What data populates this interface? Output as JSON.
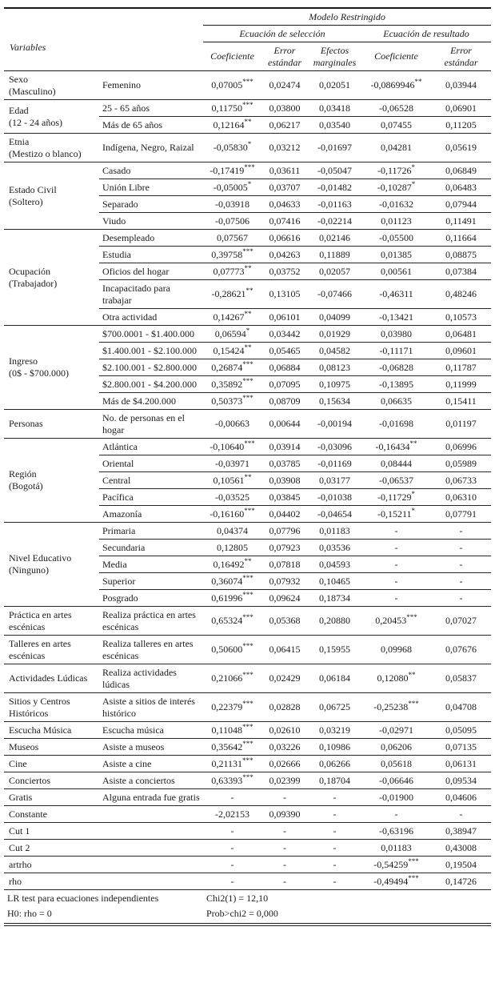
{
  "page": {
    "background_color": "#ffffff",
    "ink_color": "#1b1b1b"
  },
  "table": {
    "title": "Modelo Restringido",
    "variables_header": "Variables",
    "section_headers": {
      "selection": "Ecuación de selección",
      "outcome": "Ecuación de resultado"
    },
    "column_headers": [
      "Coeficiente",
      "Error estándar",
      "Efectos marginales",
      "Coeficiente",
      "Error estándar"
    ],
    "groups": [
      {
        "label": "Sexo\n(Masculino)",
        "rows": [
          {
            "label": "Femenino",
            "values": [
              "0,07005***",
              "0,02474",
              "0,02051",
              "-0,0869946**",
              "0,03944"
            ]
          }
        ]
      },
      {
        "label": "Edad\n(12 - 24 años)",
        "rows": [
          {
            "label": "25 - 65 años",
            "values": [
              "0,11750***",
              "0,03800",
              "0,03418",
              "-0,06528",
              "0,06901"
            ]
          },
          {
            "label": "Más de 65 años",
            "values": [
              "0,12164**",
              "0,06217",
              "0,03540",
              "0,07455",
              "0,11205"
            ]
          }
        ]
      },
      {
        "label": "Etnia\n(Mestizo o blanco)",
        "rows": [
          {
            "label": "Indígena, Negro, Raizal",
            "values": [
              "-0,05830*",
              "0,03212",
              "-0,01697",
              "0,04281",
              "0,05619"
            ]
          }
        ]
      },
      {
        "label": "Estado Civil\n(Soltero)",
        "rows": [
          {
            "label": "Casado",
            "values": [
              "-0,17419***",
              "0,03611",
              "-0,05047",
              "-0,11726*",
              "0,06849"
            ]
          },
          {
            "label": "Unión Libre",
            "values": [
              "-0,05005*",
              "0,03707",
              "-0,01482",
              "-0,10287*",
              "0,06483"
            ]
          },
          {
            "label": "Separado",
            "values": [
              "-0,03918",
              "0,04633",
              "-0,01163",
              "-0,01632",
              "0,07944"
            ]
          },
          {
            "label": "Viudo",
            "values": [
              "-0,07506",
              "0,07416",
              "-0,02214",
              "0,01123",
              "0,11491"
            ]
          }
        ]
      },
      {
        "label": "Ocupación\n(Trabajador)",
        "rows": [
          {
            "label": "Desempleado",
            "values": [
              "0,07567",
              "0,06616",
              "0,02146",
              "-0,05500",
              "0,11664"
            ]
          },
          {
            "label": "Estudia",
            "values": [
              "0,39758***",
              "0,04263",
              "0,11889",
              "0,01385",
              "0,08875"
            ]
          },
          {
            "label": "Oficios del hogar",
            "values": [
              "0,07773**",
              "0,03752",
              "0,02057",
              "0,00561",
              "0,07384"
            ]
          },
          {
            "label": "Incapacitado para trabajar",
            "values": [
              "-0,28621**",
              "0,13105",
              "-0,07466",
              "-0,46311",
              "0,48246"
            ]
          },
          {
            "label": "Otra actividad",
            "values": [
              "0,14267**",
              "0,06101",
              "0,04099",
              "-0,13421",
              "0,10573"
            ]
          }
        ]
      },
      {
        "label": "Ingreso\n(0$ - $700.000)",
        "rows": [
          {
            "label": "$700.0001 - $1.400.000",
            "values": [
              "0,06594*",
              "0,03442",
              "0,01929",
              "0,03980",
              "0,06481"
            ]
          },
          {
            "label": "$1.400.001 - $2.100.000",
            "values": [
              "0,15424**",
              "0,05465",
              "0,04582",
              "-0,11171",
              "0,09601"
            ]
          },
          {
            "label": "$2.100.001 - $2.800.000",
            "values": [
              "0,26874***",
              "0,06884",
              "0,08123",
              "-0,06828",
              "0,11787"
            ]
          },
          {
            "label": "$2.800.001 - $4.200.000",
            "values": [
              "0,35892***",
              "0,07095",
              "0,10975",
              "-0,13895",
              "0,11999"
            ]
          },
          {
            "label": "Más de $4.200.000",
            "values": [
              "0,50373***",
              "0,08709",
              "0,15634",
              "0,06635",
              "0,15411"
            ]
          }
        ]
      },
      {
        "label": "Personas",
        "rows": [
          {
            "label": "No. de personas en el hogar",
            "values": [
              "-0,00663",
              "0,00644",
              "-0,00194",
              "-0,01698",
              "0,01197"
            ]
          }
        ]
      },
      {
        "label": "Región\n(Bogotá)",
        "rows": [
          {
            "label": "Atlántica",
            "values": [
              "-0,10640***",
              "0,03914",
              "-0,03096",
              "-0,16434**",
              "0,06996"
            ]
          },
          {
            "label": "Oriental",
            "values": [
              "-0,03971",
              "0,03785",
              "-0,01169",
              "0,08444",
              "0,05989"
            ]
          },
          {
            "label": "Central",
            "values": [
              "0,10561**",
              "0,03908",
              "0,03177",
              "-0,06537",
              "0,06733"
            ]
          },
          {
            "label": "Pacífica",
            "values": [
              "-0,03525",
              "0,03845",
              "-0,01038",
              "-0,11729*",
              "0,06310"
            ]
          },
          {
            "label": "Amazonía",
            "values": [
              "-0,16160***",
              "0,04402",
              "-0,04654",
              "-0,15211*",
              "0,07791"
            ]
          }
        ]
      },
      {
        "label": "Nivel Educativo\n(Ninguno)",
        "rows": [
          {
            "label": "Primaria",
            "values": [
              "0,04374",
              "0,07796",
              "0,01183",
              "-",
              "-"
            ]
          },
          {
            "label": "Secundaria",
            "values": [
              "0,12805",
              "0,07923",
              "0,03536",
              "-",
              "-"
            ]
          },
          {
            "label": "Media",
            "values": [
              "0,16492**",
              "0,07818",
              "0,04593",
              "-",
              "-"
            ]
          },
          {
            "label": "Superior",
            "values": [
              "0,36074***",
              "0,07932",
              "0,10465",
              "-",
              "-"
            ]
          },
          {
            "label": "Posgrado",
            "values": [
              "0,61996***",
              "0,09624",
              "0,18734",
              "-",
              "-"
            ]
          }
        ]
      },
      {
        "label": "Práctica en artes\nescénicas",
        "rows": [
          {
            "label": "Realiza práctica en artes escénicas",
            "values": [
              "0,65324***",
              "0,05368",
              "0,20880",
              "0,20453***",
              "0,07027"
            ]
          }
        ]
      },
      {
        "label": "Talleres en artes\nescénicas",
        "rows": [
          {
            "label": "Realiza talleres en artes escénicas",
            "values": [
              "0,50600***",
              "0,06415",
              "0,15955",
              "0,09968",
              "0,07676"
            ]
          }
        ]
      },
      {
        "label": "Actividades Lúdicas",
        "rows": [
          {
            "label": "Realiza actividades lúdicas",
            "values": [
              "0,21066***",
              "0,02429",
              "0,06184",
              "0,12080**",
              "0,05837"
            ]
          }
        ]
      },
      {
        "label": "Sitios y Centros\nHistóricos",
        "rows": [
          {
            "label": "Asiste a sitios de interés histórico",
            "values": [
              "0,22379***",
              "0,02828",
              "0,06725",
              "-0,25238***",
              "0,04708"
            ]
          }
        ]
      },
      {
        "label": "Escucha Música",
        "rows": [
          {
            "label": "Escucha música",
            "values": [
              "0,11048***",
              "0,02610",
              "0,03219",
              "-0,02971",
              "0,05095"
            ]
          }
        ]
      },
      {
        "label": "Museos",
        "rows": [
          {
            "label": "Asiste a museos",
            "values": [
              "0,35642***",
              "0,03226",
              "0,10986",
              "0,06206",
              "0,07135"
            ]
          }
        ]
      },
      {
        "label": "Cine",
        "rows": [
          {
            "label": "Asiste a cine",
            "values": [
              "0,21131***",
              "0,02666",
              "0,06266",
              "0,05618",
              "0,06131"
            ]
          }
        ]
      },
      {
        "label": "Conciertos",
        "rows": [
          {
            "label": "Asiste a conciertos",
            "values": [
              "0,63393***",
              "0,02399",
              "0,18704",
              "-0,06646",
              "0,09534"
            ]
          }
        ]
      },
      {
        "label": "Gratis",
        "rows": [
          {
            "label": "Alguna entrada fue gratis",
            "values": [
              "-",
              "-",
              "-",
              "-0,01900",
              "0,04606"
            ]
          }
        ]
      },
      {
        "label": "Constante",
        "rows": [
          {
            "label": "",
            "values": [
              "-2,02153",
              "0,09390",
              "-",
              "-",
              "-"
            ]
          }
        ]
      },
      {
        "label": "Cut 1",
        "rows": [
          {
            "label": "",
            "values": [
              "-",
              "-",
              "-",
              "-0,63196",
              "0,38947"
            ]
          }
        ]
      },
      {
        "label": "Cut 2",
        "rows": [
          {
            "label": "",
            "values": [
              "-",
              "-",
              "-",
              "0,01183",
              "0,43008"
            ]
          }
        ]
      },
      {
        "label": "artrho",
        "rows": [
          {
            "label": "",
            "values": [
              "-",
              "-",
              "-",
              "-0,54259***",
              "0,19504"
            ]
          }
        ]
      },
      {
        "label": "rho",
        "rows": [
          {
            "label": "",
            "values": [
              "-",
              "-",
              "-",
              "-0,49494***",
              "0,14726"
            ]
          }
        ]
      }
    ],
    "footer": {
      "row1": {
        "label": "LR test para ecuaciones independientes",
        "value": "Chi2(1) = 12,10"
      },
      "row2": {
        "label": "H0: rho = 0",
        "value": "Prob>chi2 = 0,000"
      }
    }
  }
}
